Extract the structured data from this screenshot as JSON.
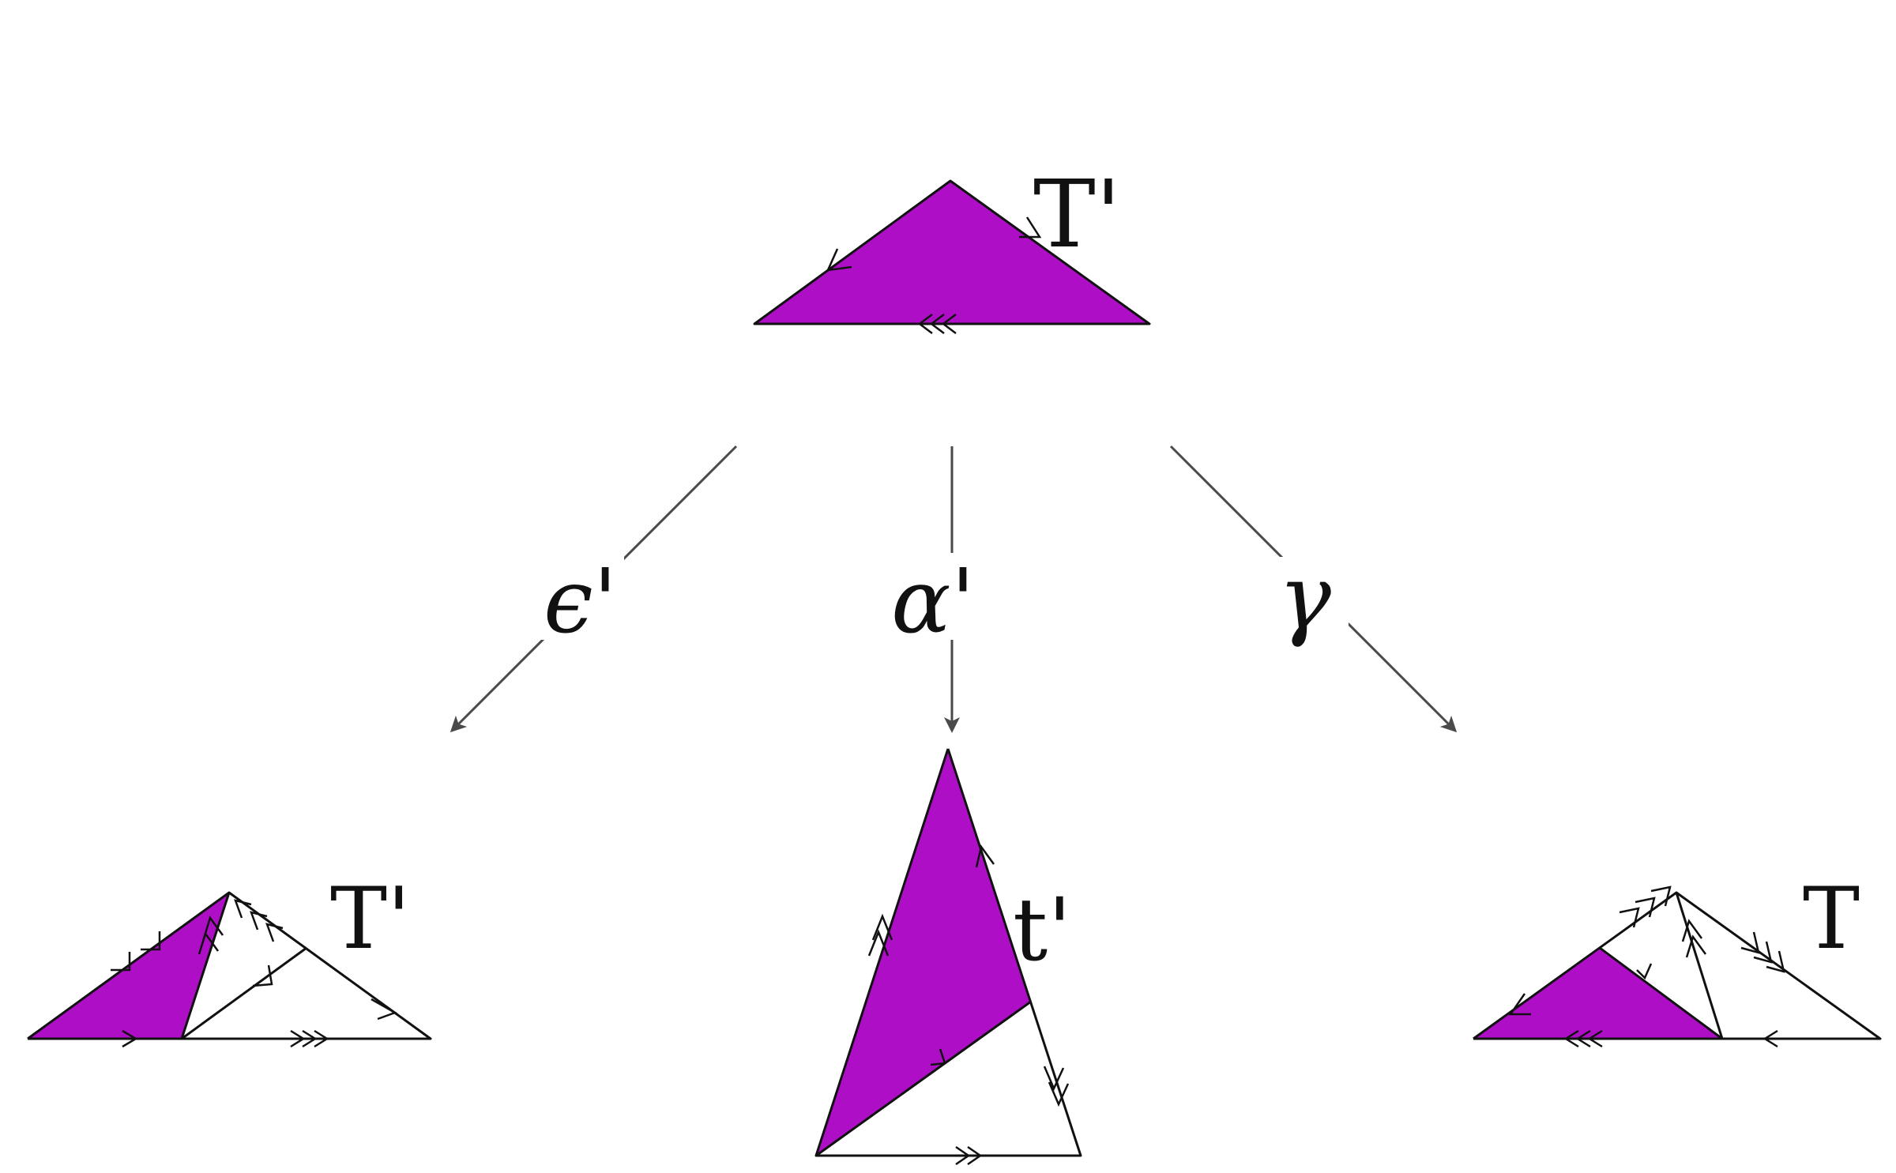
{
  "colors": {
    "fill": "#ae0fc6",
    "stroke": "#111111",
    "arrow": "#4a4a4a"
  },
  "triangles": {
    "top": {
      "label": "T'"
    },
    "left": {
      "label": "T'"
    },
    "middle": {
      "label": "t'"
    },
    "right": {
      "label": "T"
    }
  },
  "arrows": {
    "left": {
      "label": "ϵ'"
    },
    "middle": {
      "label": "α'"
    },
    "right": {
      "label": "γ"
    }
  }
}
